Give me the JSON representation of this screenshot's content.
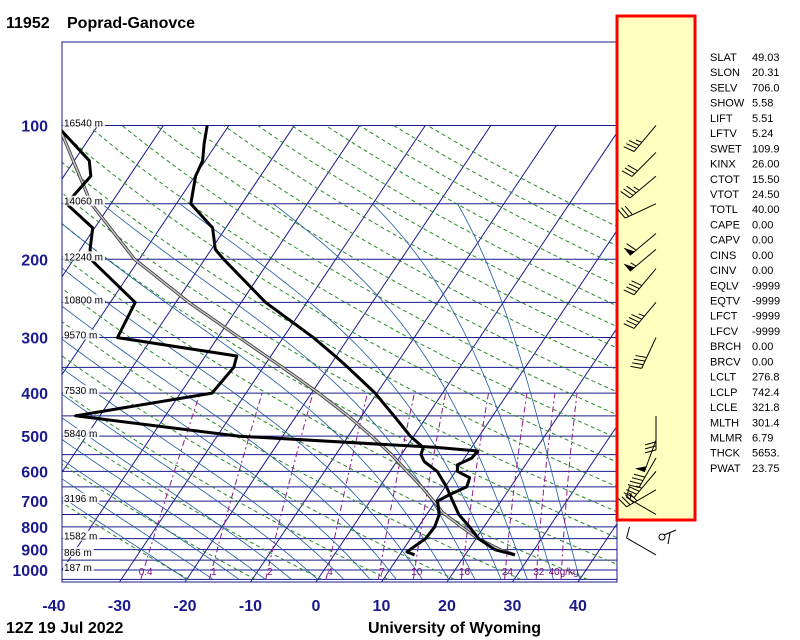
{
  "station": {
    "id": "11952",
    "name": "Poprad-Ganovce"
  },
  "footer": {
    "time": "12Z 19 Jul 2022",
    "source": "University of Wyoming"
  },
  "colors": {
    "isobar": "#1a1a8c",
    "isotherm": "#1a1a8c",
    "dry_adiabat": "#2a8a2a",
    "moist_adiabat": "#1a5aa0",
    "mixing_ratio": "#8a1a8a",
    "profile": "#000000",
    "parcel": "#808080",
    "wind_panel_bg": "#ffffc0",
    "wind_panel_border": "#ff0000"
  },
  "pressure_levels": [
    {
      "p": 100,
      "label": "100"
    },
    {
      "p": 150,
      "label": ""
    },
    {
      "p": 200,
      "label": "200"
    },
    {
      "p": 250,
      "label": ""
    },
    {
      "p": 300,
      "label": "300"
    },
    {
      "p": 350,
      "label": ""
    },
    {
      "p": 400,
      "label": "400"
    },
    {
      "p": 450,
      "label": ""
    },
    {
      "p": 500,
      "label": "500"
    },
    {
      "p": 550,
      "label": ""
    },
    {
      "p": 600,
      "label": "600"
    },
    {
      "p": 650,
      "label": ""
    },
    {
      "p": 700,
      "label": "700"
    },
    {
      "p": 750,
      "label": ""
    },
    {
      "p": 800,
      "label": "800"
    },
    {
      "p": 850,
      "label": ""
    },
    {
      "p": 900,
      "label": "900"
    },
    {
      "p": 950,
      "label": ""
    },
    {
      "p": 1000,
      "label": "1000"
    }
  ],
  "temp_ticks": [
    "-40",
    "-30",
    "-20",
    "-10",
    "0",
    "10",
    "20",
    "30",
    "40"
  ],
  "heights": [
    {
      "p": 100,
      "label": "16540 m"
    },
    {
      "p": 150,
      "label": "14060 m"
    },
    {
      "p": 200,
      "label": "12240 m"
    },
    {
      "p": 250,
      "label": "10800 m"
    },
    {
      "p": 300,
      "label": "9570 m"
    },
    {
      "p": 400,
      "label": "7530 m"
    },
    {
      "p": 500,
      "label": "5840 m"
    },
    {
      "p": 700,
      "label": "3196 m"
    },
    {
      "p": 850,
      "label": "1582 m"
    },
    {
      "p": 925,
      "label": "866 m"
    },
    {
      "p": 1000,
      "label": "187 m"
    }
  ],
  "mixing_ratio_labels": [
    "0.4",
    "1",
    "2",
    "4",
    "7",
    "10",
    "16",
    "24",
    "32",
    "40g/kg"
  ],
  "mixing_ratio_values": [
    0.4,
    1,
    2,
    4,
    7,
    10,
    16,
    24,
    32,
    40
  ],
  "chart_data": {
    "type": "line",
    "title": "11952 Poprad-Ganovce",
    "subtitle": "12Z 19 Jul 2022",
    "x_axis": {
      "label": "",
      "unit": "°C",
      "range": [
        -40,
        45
      ],
      "skewed": true
    },
    "y_axis": {
      "label": "",
      "unit": "hPa",
      "range": [
        1000,
        100
      ],
      "log_scale": true
    },
    "grid": true,
    "series": [
      {
        "name": "",
        "role": "temperature",
        "points": [
          {
            "p": 925,
            "t": 27.6
          },
          {
            "p": 900,
            "t": 24.0
          },
          {
            "p": 850,
            "t": 20.4
          },
          {
            "p": 800,
            "t": 17.8
          },
          {
            "p": 750,
            "t": 14.9
          },
          {
            "p": 700,
            "t": 12.6
          },
          {
            "p": 650,
            "t": 10.2
          },
          {
            "p": 600,
            "t": 7.2
          },
          {
            "p": 570,
            "t": 4.2
          },
          {
            "p": 550,
            "t": 3.0
          },
          {
            "p": 530,
            "t": 2.6
          },
          {
            "p": 500,
            "t": -0.5
          },
          {
            "p": 450,
            "t": -5.1
          },
          {
            "p": 400,
            "t": -10.3
          },
          {
            "p": 350,
            "t": -17.1
          },
          {
            "p": 330,
            "t": -20.2
          },
          {
            "p": 300,
            "t": -25.4
          },
          {
            "p": 250,
            "t": -36.3
          },
          {
            "p": 200,
            "t": -47.1
          },
          {
            "p": 190,
            "t": -49.4
          },
          {
            "p": 170,
            "t": -52.0
          },
          {
            "p": 150,
            "t": -57.8
          },
          {
            "p": 130,
            "t": -59.9
          },
          {
            "p": 120,
            "t": -60.4
          },
          {
            "p": 110,
            "t": -61.9
          },
          {
            "p": 100,
            "t": -63.3
          }
        ]
      },
      {
        "name": "",
        "role": "dewpoint",
        "points": [
          {
            "p": 925,
            "t": 12.3
          },
          {
            "p": 910,
            "t": 10.8
          },
          {
            "p": 850,
            "t": 12.3
          },
          {
            "p": 800,
            "t": 12.5
          },
          {
            "p": 750,
            "t": 11.9
          },
          {
            "p": 700,
            "t": 10.3
          },
          {
            "p": 680,
            "t": 11.3
          },
          {
            "p": 650,
            "t": 13.3
          },
          {
            "p": 620,
            "t": 12.8
          },
          {
            "p": 600,
            "t": 10.3
          },
          {
            "p": 580,
            "t": 9.6
          },
          {
            "p": 560,
            "t": 11.1
          },
          {
            "p": 540,
            "t": 11.3
          },
          {
            "p": 530,
            "t": 4.6
          },
          {
            "p": 500,
            "t": -26.6
          },
          {
            "p": 450,
            "t": -53.7
          },
          {
            "p": 400,
            "t": -35.2
          },
          {
            "p": 350,
            "t": -34.5
          },
          {
            "p": 330,
            "t": -35.2
          },
          {
            "p": 300,
            "t": -55.3
          },
          {
            "p": 250,
            "t": -56.2
          },
          {
            "p": 200,
            "t": -67.4
          },
          {
            "p": 190,
            "t": -68.5
          },
          {
            "p": 170,
            "t": -70.3
          },
          {
            "p": 150,
            "t": -76.8
          },
          {
            "p": 130,
            "t": -75.9
          },
          {
            "p": 120,
            "t": -77.7
          },
          {
            "p": 100,
            "t": -86.3
          }
        ]
      },
      {
        "name": "",
        "role": "parcel",
        "points": [
          {
            "p": 925,
            "t": 27.6
          },
          {
            "p": 900,
            "t": 24.8
          },
          {
            "p": 850,
            "t": 20.3
          },
          {
            "p": 800,
            "t": 16.6
          },
          {
            "p": 742,
            "t": 12.2
          },
          {
            "p": 700,
            "t": 9.7
          },
          {
            "p": 650,
            "t": 6.4
          },
          {
            "p": 600,
            "t": 2.6
          },
          {
            "p": 550,
            "t": -1.5
          },
          {
            "p": 500,
            "t": -6.4
          },
          {
            "p": 450,
            "t": -12.1
          },
          {
            "p": 400,
            "t": -18.9
          },
          {
            "p": 350,
            "t": -27.1
          },
          {
            "p": 300,
            "t": -36.7
          },
          {
            "p": 250,
            "t": -48.0
          },
          {
            "p": 200,
            "t": -60.7
          },
          {
            "p": 150,
            "t": -73.0
          },
          {
            "p": 100,
            "t": -86.0
          }
        ]
      }
    ],
    "winds": [
      {
        "p": 100,
        "dir": 220,
        "kt": 35
      },
      {
        "p": 115,
        "dir": 225,
        "kt": 30
      },
      {
        "p": 130,
        "dir": 230,
        "kt": 35
      },
      {
        "p": 150,
        "dir": 245,
        "kt": 30
      },
      {
        "p": 175,
        "dir": 230,
        "kt": 60
      },
      {
        "p": 190,
        "dir": 230,
        "kt": 55
      },
      {
        "p": 210,
        "dir": 220,
        "kt": 40
      },
      {
        "p": 250,
        "dir": 220,
        "kt": 45
      },
      {
        "p": 300,
        "dir": 205,
        "kt": 40
      },
      {
        "p": 450,
        "dir": 180,
        "kt": 30
      },
      {
        "p": 510,
        "dir": 200,
        "kt": 50
      },
      {
        "p": 560,
        "dir": 210,
        "kt": 40
      },
      {
        "p": 600,
        "dir": 220,
        "kt": 35
      },
      {
        "p": 660,
        "dir": 240,
        "kt": 40
      },
      {
        "p": 750,
        "dir": 300,
        "kt": 15
      },
      {
        "p": 925,
        "dir": 300,
        "kt": 10
      }
    ]
  },
  "indices": [
    {
      "key": "SLAT",
      "value": "49.03"
    },
    {
      "key": "SLON",
      "value": "20.31"
    },
    {
      "key": "SELV",
      "value": "706.0"
    },
    {
      "key": "SHOW",
      "value": "5.58"
    },
    {
      "key": "LIFT",
      "value": "5.51"
    },
    {
      "key": "LFTV",
      "value": "5.24"
    },
    {
      "key": "SWET",
      "value": "109.9"
    },
    {
      "key": "KINX",
      "value": "26.00"
    },
    {
      "key": "CTOT",
      "value": "15.50"
    },
    {
      "key": "VTOT",
      "value": "24.50"
    },
    {
      "key": "TOTL",
      "value": "40.00"
    },
    {
      "key": "CAPE",
      "value": "0.00"
    },
    {
      "key": "CAPV",
      "value": "0.00"
    },
    {
      "key": "CINS",
      "value": "0.00"
    },
    {
      "key": "CINV",
      "value": "0.00"
    },
    {
      "key": "EQLV",
      "value": "-9999"
    },
    {
      "key": "EQTV",
      "value": "-9999"
    },
    {
      "key": "LFCT",
      "value": "-9999"
    },
    {
      "key": "LFCV",
      "value": "-9999"
    },
    {
      "key": "BRCH",
      "value": "0.00"
    },
    {
      "key": "BRCV",
      "value": "0.00"
    },
    {
      "key": "LCLT",
      "value": "276.8"
    },
    {
      "key": "LCLP",
      "value": "742.4"
    },
    {
      "key": "LCLE",
      "value": "321.8"
    },
    {
      "key": "MLTH",
      "value": "301.4"
    },
    {
      "key": "MLMR",
      "value": "6.79"
    },
    {
      "key": "THCK",
      "value": "5653."
    },
    {
      "key": "PWAT",
      "value": "23.75"
    }
  ]
}
